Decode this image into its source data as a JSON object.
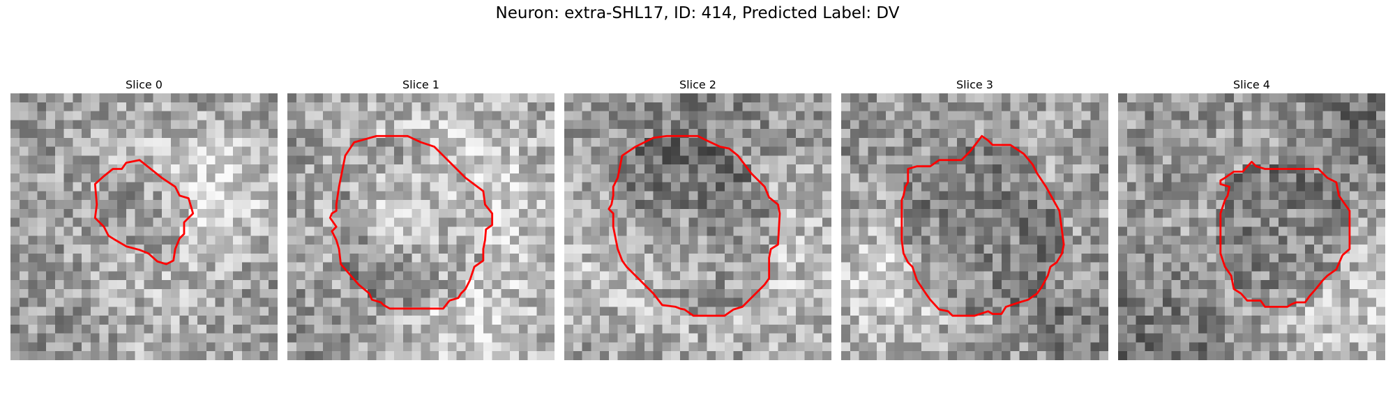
{
  "figure": {
    "title": "Neuron: extra-SHL17, ID: 414, Predicted Label: DV"
  },
  "panels": [
    {
      "title": "Slice 0",
      "outline_color": "#ff0000"
    },
    {
      "title": "Slice 1",
      "outline_color": "#ff0000"
    },
    {
      "title": "Slice 2",
      "outline_color": "#ff0000"
    },
    {
      "title": "Slice 3",
      "outline_color": "#ff0000"
    },
    {
      "title": "Slice 4",
      "outline_color": "#ff0000"
    }
  ]
}
